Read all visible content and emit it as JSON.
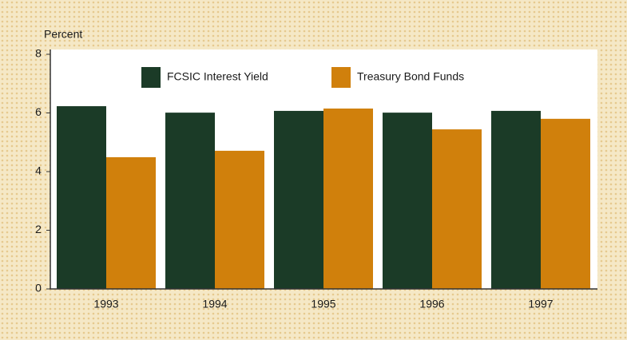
{
  "chart_data": {
    "type": "bar",
    "y_label": "Percent",
    "categories": [
      "1993",
      "1994",
      "1995",
      "1996",
      "1997"
    ],
    "series": [
      {
        "name": "FCSIC Interest Yield",
        "color": "#1b3b27",
        "values": [
          6.23,
          6.01,
          6.07,
          6.01,
          6.07
        ]
      },
      {
        "name": "Treasury Bond Funds",
        "color": "#d0800c",
        "values": [
          4.49,
          4.71,
          6.15,
          5.44,
          5.8
        ]
      }
    ],
    "ylim": [
      0,
      8
    ],
    "yticks": [
      0,
      2,
      4,
      6,
      8
    ],
    "legend": "top"
  }
}
